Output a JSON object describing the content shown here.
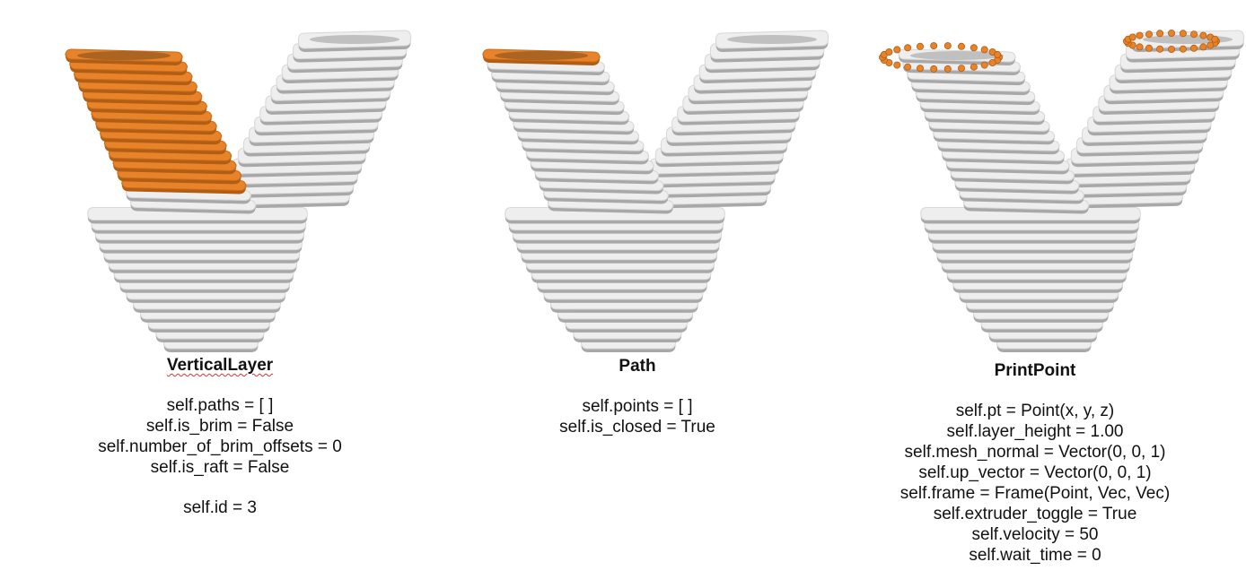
{
  "colors": {
    "highlight": "#e8832a",
    "highlight_dark": "#b05d15",
    "body": "#eeeeee",
    "rib_shadow": "#a8a8a8",
    "text": "#111111"
  },
  "panels": [
    {
      "title": "VerticalLayer",
      "highlight": "lower-left-stack",
      "lines": [
        "self.paths = [ ]",
        "self.is_brim = False",
        "self.number_of_brim_offsets = 0",
        "self.is_raft = False",
        "",
        "self.id = 3"
      ]
    },
    {
      "title": "Path",
      "highlight": "top-left-ring",
      "lines": [
        "self.points = [ ]",
        "self.is_closed = True"
      ]
    },
    {
      "title": "PrintPoint",
      "highlight": "top-ring-points",
      "lines": [
        "self.pt = Point(x, y, z)",
        "self.layer_height = 1.00",
        "self.mesh_normal = Vector(0, 0, 1)",
        "self.up_vector = Vector(0, 0, 1)",
        "self.frame = Frame(Point, Vec, Vec)",
        "self.extruder_toggle = True",
        "self.velocity = 50",
        "self.wait_time = 0"
      ]
    }
  ]
}
